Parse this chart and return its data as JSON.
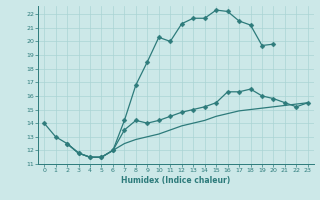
{
  "xlabel": "Humidex (Indice chaleur)",
  "bg_color": "#cce8e8",
  "line_color": "#2d7b7b",
  "grid_color": "#aad4d4",
  "xlim": [
    -0.5,
    23.5
  ],
  "ylim": [
    11,
    22.6
  ],
  "xticks": [
    0,
    1,
    2,
    3,
    4,
    5,
    6,
    7,
    8,
    9,
    10,
    11,
    12,
    13,
    14,
    15,
    16,
    17,
    18,
    19,
    20,
    21,
    22,
    23
  ],
  "yticks": [
    11,
    12,
    13,
    14,
    15,
    16,
    17,
    18,
    19,
    20,
    21,
    22
  ],
  "line1_x": [
    0,
    1,
    2,
    3,
    4,
    5,
    6,
    7,
    8,
    9,
    10,
    11,
    12,
    13,
    14,
    15,
    16,
    17,
    18,
    19,
    20
  ],
  "line1_y": [
    14.0,
    13.0,
    12.5,
    11.8,
    11.5,
    11.5,
    12.0,
    14.2,
    16.8,
    18.5,
    20.3,
    20.0,
    21.3,
    21.7,
    21.7,
    22.3,
    22.2,
    21.5,
    21.2,
    19.7,
    19.8
  ],
  "line2_x": [
    2,
    3,
    4,
    5,
    6,
    7,
    8,
    9,
    10,
    11,
    12,
    13,
    14,
    15,
    16,
    17,
    18,
    19,
    20,
    21,
    22,
    23
  ],
  "line2_y": [
    12.5,
    11.8,
    11.5,
    11.5,
    12.0,
    13.5,
    14.2,
    14.0,
    14.2,
    14.5,
    14.8,
    15.0,
    15.2,
    15.5,
    16.3,
    16.3,
    16.5,
    16.0,
    15.8,
    15.5,
    15.2,
    15.5
  ],
  "line3_x": [
    2,
    3,
    4,
    5,
    6,
    7,
    8,
    9,
    10,
    11,
    12,
    13,
    14,
    15,
    16,
    17,
    18,
    19,
    20,
    21,
    22,
    23
  ],
  "line3_y": [
    12.5,
    11.8,
    11.5,
    11.5,
    12.0,
    12.5,
    12.8,
    13.0,
    13.2,
    13.5,
    13.8,
    14.0,
    14.2,
    14.5,
    14.7,
    14.9,
    15.0,
    15.1,
    15.2,
    15.3,
    15.4,
    15.5
  ]
}
